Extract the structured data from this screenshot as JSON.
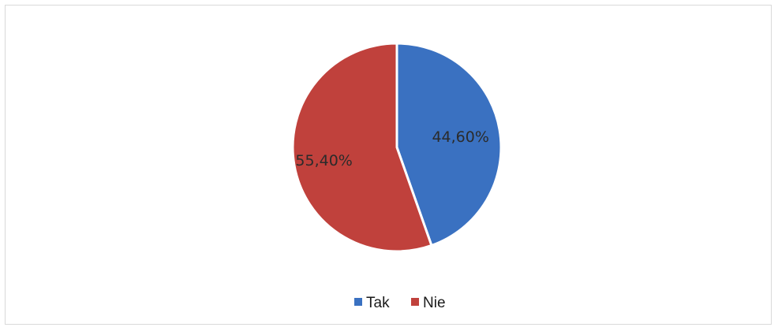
{
  "chart_data": {
    "type": "pie",
    "categories": [
      "Tak",
      "Nie"
    ],
    "values": [
      44.6,
      55.4
    ],
    "data_labels": [
      "44,60%",
      "55,40%"
    ],
    "colors": [
      "#3a71c1",
      "#c0413c"
    ],
    "legend_position": "bottom",
    "start_angle_deg": 0,
    "direction": "clockwise"
  },
  "legend": {
    "items": [
      {
        "label": "Tak",
        "color": "#3a71c1"
      },
      {
        "label": "Nie",
        "color": "#c0413c"
      }
    ]
  }
}
